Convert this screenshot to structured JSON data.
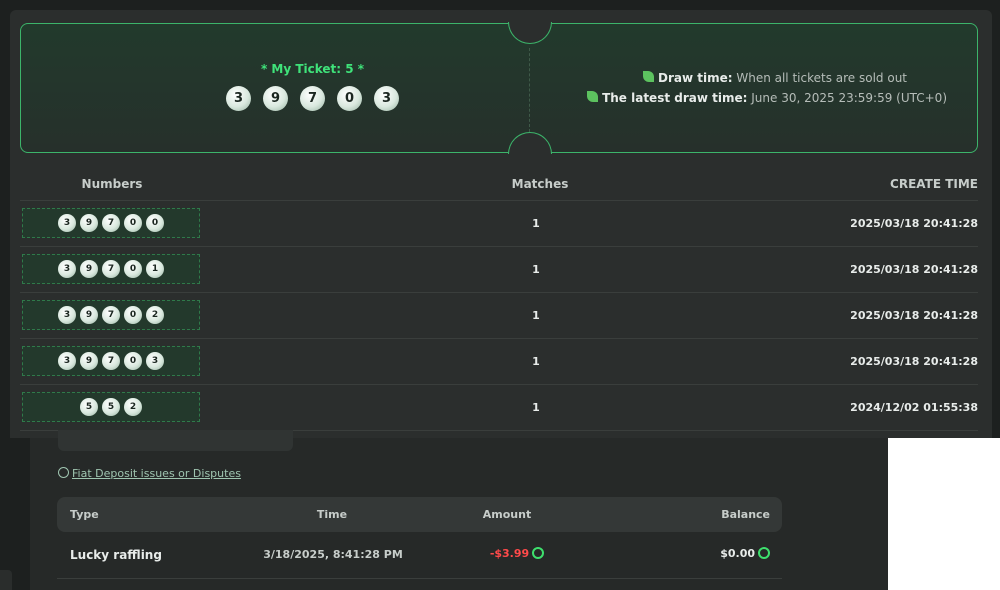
{
  "ticket": {
    "title": "* My Ticket: 5 *",
    "numbers": [
      3,
      9,
      7,
      0,
      3
    ],
    "draw_time_label": "Draw time:",
    "draw_time_value": "When all tickets are sold out",
    "latest_label": "The latest draw time:",
    "latest_value": "June 30, 2025 23:59:59 (UTC+0)"
  },
  "table": {
    "headers": [
      "Numbers",
      "Matches",
      "CREATE TIME"
    ],
    "rows": [
      {
        "numbers": [
          3,
          9,
          7,
          0,
          0
        ],
        "matches": 1,
        "time": "2025/03/18 20:41:28"
      },
      {
        "numbers": [
          3,
          9,
          7,
          0,
          1
        ],
        "matches": 1,
        "time": "2025/03/18 20:41:28"
      },
      {
        "numbers": [
          3,
          9,
          7,
          0,
          2
        ],
        "matches": 1,
        "time": "2025/03/18 20:41:28"
      },
      {
        "numbers": [
          3,
          9,
          7,
          0,
          3
        ],
        "matches": 1,
        "time": "2025/03/18 20:41:28"
      },
      {
        "numbers": [
          5,
          5,
          2
        ],
        "matches": 1,
        "time": "2024/12/02 01:55:38"
      }
    ]
  },
  "history": {
    "link": "Fiat Deposit issues or Disputes",
    "headers": [
      "Type",
      "Time",
      "Amount",
      "Balance"
    ],
    "rows": [
      {
        "type": "Lucky raffling",
        "time": "3/18/2025, 8:41:28 PM",
        "amount": "-$3.99",
        "balance": "$0.00"
      }
    ]
  }
}
